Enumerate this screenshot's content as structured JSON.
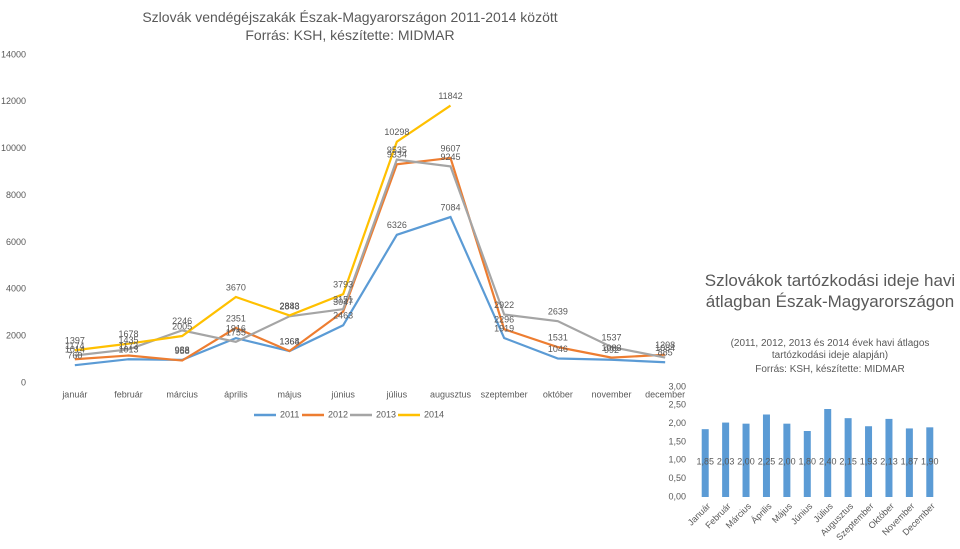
{
  "chart_data": [
    {
      "type": "line",
      "title": "Szlovák vendégéjszakák Észak-Magyarországon 2011-2014 között",
      "subtitle": "Forrás: KSH, készítette: MIDMAR",
      "categories": [
        "január",
        "február",
        "március",
        "április",
        "május",
        "június",
        "július",
        "augusztus",
        "szeptember",
        "október",
        "november",
        "december"
      ],
      "series": [
        {
          "name": "2011",
          "color": "#5b9bd5",
          "values": [
            760,
            1013,
            988,
            1916,
            1364,
            2463,
            6326,
            7084,
            1919,
            1046,
            992,
            885
          ]
        },
        {
          "name": "2012",
          "color": "#ed7d31",
          "values": [
            1014,
            1173,
            958,
            2351,
            1368,
            3047,
            9334,
            9607,
            2296,
            1531,
            1083,
            1208
          ]
        },
        {
          "name": "2013",
          "color": "#a5a5a5",
          "values": [
            1174,
            1435,
            2246,
            1755,
            2848,
            3151,
            9535,
            9245,
            2922,
            2639,
            1537,
            1084
          ]
        },
        {
          "name": "2014",
          "color": "#ffc000",
          "values": [
            1397,
            1678,
            2005,
            3670,
            2883,
            3793,
            10298,
            11842,
            null,
            null,
            null,
            null
          ]
        }
      ],
      "ylim": [
        0,
        14000
      ],
      "yticks": [
        0,
        2000,
        4000,
        6000,
        8000,
        10000,
        12000,
        14000
      ],
      "grid": false,
      "legend": "bottom"
    },
    {
      "type": "bar",
      "title": "Szlovákok tartózkodási ideje havi átlagban Észak-Magyarországon",
      "subtitle": "(2011, 2012, 2013 és 2014 évek havi átlagos tartózkodási ideje alapján)",
      "source": "Forrás: KSH, készítette: MIDMAR",
      "categories": [
        "Január",
        "Február",
        "Március",
        "Április",
        "Május",
        "Június",
        "Július",
        "Augusztus",
        "Szeptember",
        "Október",
        "November",
        "December"
      ],
      "values": [
        1.85,
        2.03,
        2.0,
        2.25,
        2.0,
        1.8,
        2.4,
        2.15,
        1.93,
        2.13,
        1.87,
        1.9
      ],
      "value_labels": [
        "1,85",
        "2,03",
        "2,00",
        "2,25",
        "2,00",
        "1,80",
        "2,40",
        "2,15",
        "1,93",
        "2,13",
        "1,87",
        "1,90"
      ],
      "color": "#5b9bd5",
      "ylim": [
        0,
        3
      ],
      "yticks": [
        {
          "value": 0,
          "label": "0,00"
        },
        {
          "value": 0.5,
          "label": "0,50"
        },
        {
          "value": 1,
          "label": "1,00"
        },
        {
          "value": 1.5,
          "label": "1,50"
        },
        {
          "value": 2,
          "label": "2,00"
        },
        {
          "value": 2.5,
          "label": "2,50"
        },
        {
          "value": 3,
          "label": "3,00"
        }
      ],
      "grid": false
    }
  ]
}
